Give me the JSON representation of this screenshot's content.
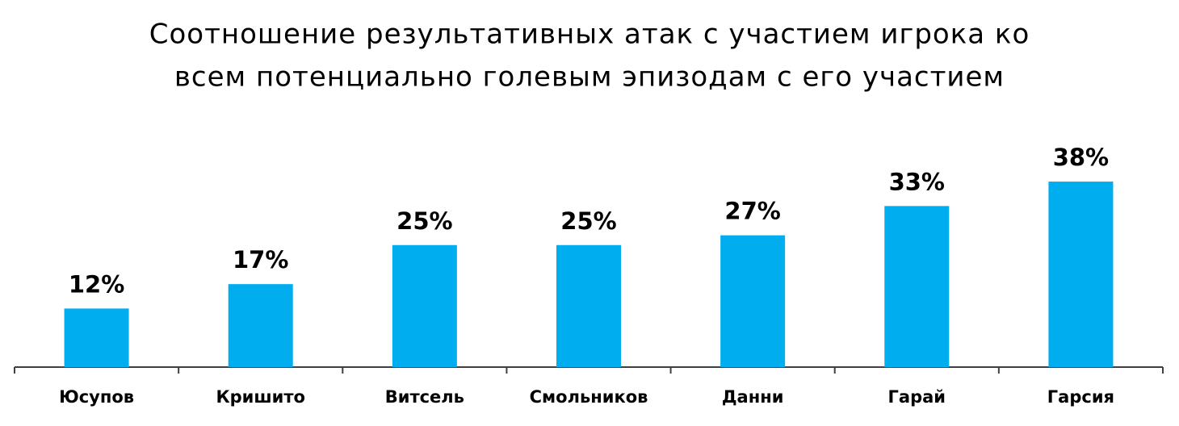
{
  "chart_data": {
    "type": "bar",
    "title": [
      "Соотношение результативных атак с участием игрока ко",
      "всем потенциально голевым эпизодам с его участием"
    ],
    "categories": [
      "Юсупов",
      "Кришито",
      "Витсель",
      "Смольников",
      "Данни",
      "Гарай",
      "Гарсия"
    ],
    "values": [
      12,
      17,
      25,
      25,
      27,
      33,
      38
    ],
    "value_labels": [
      "12%",
      "17%",
      "25%",
      "25%",
      "27%",
      "33%",
      "38%"
    ],
    "color": "#00aeef"
  }
}
